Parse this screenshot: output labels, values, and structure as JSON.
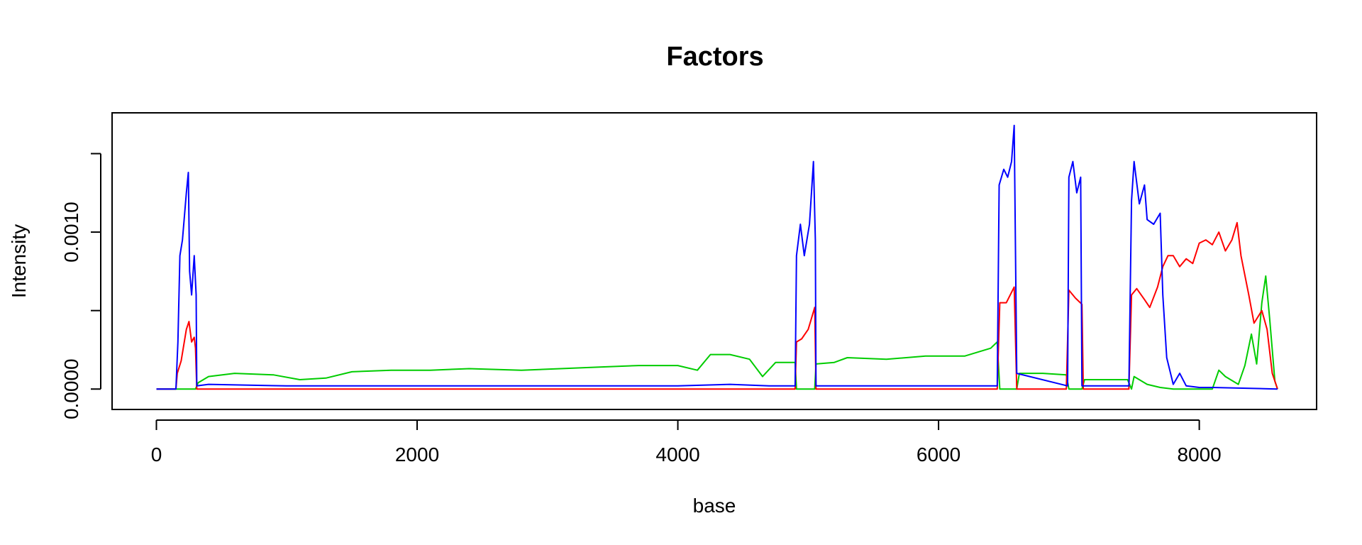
{
  "chart_data": {
    "type": "line",
    "title": "Factors",
    "xlabel": "base",
    "ylabel": "Intensity",
    "xlim": [
      -340,
      8900
    ],
    "ylim": [
      -0.00013,
      0.00176
    ],
    "x_ticks": [
      0,
      2000,
      4000,
      6000,
      8000
    ],
    "x_tick_labels": [
      "0",
      "2000",
      "4000",
      "6000",
      "8000"
    ],
    "y_ticks": [
      0,
      0.0005,
      0.001,
      0.0015
    ],
    "y_tick_labels": [
      "0.0000",
      "",
      "0.0010",
      ""
    ],
    "grid": false,
    "legend": "none",
    "series": [
      {
        "color": "#00cc00",
        "points": [
          [
            0,
            0
          ],
          [
            150,
            0
          ],
          [
            300,
            0
          ],
          [
            320,
            4e-05
          ],
          [
            400,
            8e-05
          ],
          [
            600,
            0.0001
          ],
          [
            900,
            9e-05
          ],
          [
            1100,
            6e-05
          ],
          [
            1300,
            7e-05
          ],
          [
            1500,
            0.00011
          ],
          [
            1800,
            0.00012
          ],
          [
            2100,
            0.00012
          ],
          [
            2400,
            0.00013
          ],
          [
            2800,
            0.00012
          ],
          [
            3100,
            0.00013
          ],
          [
            3400,
            0.00014
          ],
          [
            3700,
            0.00015
          ],
          [
            4000,
            0.00015
          ],
          [
            4150,
            0.00012
          ],
          [
            4250,
            0.00022
          ],
          [
            4400,
            0.00022
          ],
          [
            4550,
            0.00019
          ],
          [
            4650,
            8e-05
          ],
          [
            4750,
            0.00017
          ],
          [
            4900,
            0.00017
          ],
          [
            4910,
            0
          ],
          [
            5050,
            0
          ],
          [
            5060,
            0.00016
          ],
          [
            5200,
            0.00017
          ],
          [
            5300,
            0.0002
          ],
          [
            5600,
            0.00019
          ],
          [
            5900,
            0.00021
          ],
          [
            6200,
            0.00021
          ],
          [
            6400,
            0.00026
          ],
          [
            6450,
            0.0003
          ],
          [
            6470,
            0
          ],
          [
            6600,
            0
          ],
          [
            6620,
            0.0001
          ],
          [
            6800,
            0.0001
          ],
          [
            6980,
            9e-05
          ],
          [
            7000,
            0
          ],
          [
            7100,
            0
          ],
          [
            7120,
            6e-05
          ],
          [
            7300,
            6e-05
          ],
          [
            7450,
            6e-05
          ],
          [
            7480,
            0
          ],
          [
            7500,
            8e-05
          ],
          [
            7600,
            3e-05
          ],
          [
            7700,
            1e-05
          ],
          [
            7800,
            0
          ],
          [
            8100,
            0
          ],
          [
            8150,
            0.00012
          ],
          [
            8200,
            8e-05
          ],
          [
            8300,
            3e-05
          ],
          [
            8350,
            0.00015
          ],
          [
            8400,
            0.00035
          ],
          [
            8440,
            0.00016
          ],
          [
            8480,
            0.00055
          ],
          [
            8510,
            0.00072
          ],
          [
            8540,
            0.00045
          ],
          [
            8580,
            5e-05
          ],
          [
            8600,
            0
          ]
        ]
      },
      {
        "color": "#ff0000",
        "points": [
          [
            0,
            0
          ],
          [
            150,
            0
          ],
          [
            160,
            0.0001
          ],
          [
            190,
            0.00018
          ],
          [
            230,
            0.00038
          ],
          [
            250,
            0.00043
          ],
          [
            270,
            0.0003
          ],
          [
            290,
            0.00033
          ],
          [
            300,
            0.00026
          ],
          [
            310,
            0
          ],
          [
            4900,
            0
          ],
          [
            4910,
            0.0003
          ],
          [
            4950,
            0.00032
          ],
          [
            5000,
            0.00038
          ],
          [
            5050,
            0.00052
          ],
          [
            5060,
            0
          ],
          [
            6450,
            0
          ],
          [
            6470,
            0.00055
          ],
          [
            6520,
            0.00055
          ],
          [
            6580,
            0.00065
          ],
          [
            6600,
            0
          ],
          [
            6980,
            0
          ],
          [
            7000,
            0.00063
          ],
          [
            7050,
            0.00058
          ],
          [
            7100,
            0.00054
          ],
          [
            7110,
            0
          ],
          [
            7460,
            0
          ],
          [
            7480,
            0.0006
          ],
          [
            7520,
            0.00064
          ],
          [
            7580,
            0.00057
          ],
          [
            7620,
            0.00052
          ],
          [
            7680,
            0.00065
          ],
          [
            7720,
            0.00078
          ],
          [
            7760,
            0.00085
          ],
          [
            7800,
            0.00085
          ],
          [
            7850,
            0.00078
          ],
          [
            7900,
            0.00083
          ],
          [
            7950,
            0.0008
          ],
          [
            8000,
            0.00093
          ],
          [
            8050,
            0.00095
          ],
          [
            8100,
            0.00092
          ],
          [
            8150,
            0.001
          ],
          [
            8200,
            0.00088
          ],
          [
            8250,
            0.00095
          ],
          [
            8290,
            0.00106
          ],
          [
            8320,
            0.00085
          ],
          [
            8380,
            0.0006
          ],
          [
            8420,
            0.00042
          ],
          [
            8480,
            0.0005
          ],
          [
            8520,
            0.00038
          ],
          [
            8560,
            0.0001
          ],
          [
            8600,
            0
          ]
        ]
      },
      {
        "color": "#0000ff",
        "points": [
          [
            0,
            0
          ],
          [
            150,
            0
          ],
          [
            165,
            0.0003
          ],
          [
            180,
            0.00085
          ],
          [
            200,
            0.00095
          ],
          [
            230,
            0.00125
          ],
          [
            245,
            0.00138
          ],
          [
            255,
            0.00075
          ],
          [
            270,
            0.0006
          ],
          [
            290,
            0.00085
          ],
          [
            305,
            0.0006
          ],
          [
            310,
            2e-05
          ],
          [
            400,
            3e-05
          ],
          [
            1000,
            2e-05
          ],
          [
            2000,
            2e-05
          ],
          [
            3000,
            2e-05
          ],
          [
            4000,
            2e-05
          ],
          [
            4400,
            3e-05
          ],
          [
            4700,
            2e-05
          ],
          [
            4900,
            2e-05
          ],
          [
            4910,
            0.00085
          ],
          [
            4940,
            0.00105
          ],
          [
            4970,
            0.00085
          ],
          [
            5010,
            0.00105
          ],
          [
            5040,
            0.00145
          ],
          [
            5055,
            0.00095
          ],
          [
            5060,
            2e-05
          ],
          [
            6000,
            2e-05
          ],
          [
            6450,
            2e-05
          ],
          [
            6465,
            0.0013
          ],
          [
            6500,
            0.0014
          ],
          [
            6530,
            0.00135
          ],
          [
            6560,
            0.00145
          ],
          [
            6580,
            0.00168
          ],
          [
            6600,
            0.0001
          ],
          [
            6990,
            2e-05
          ],
          [
            7000,
            0.00135
          ],
          [
            7030,
            0.00145
          ],
          [
            7060,
            0.00125
          ],
          [
            7090,
            0.00135
          ],
          [
            7100,
            2e-05
          ],
          [
            7460,
            2e-05
          ],
          [
            7480,
            0.0012
          ],
          [
            7500,
            0.00145
          ],
          [
            7540,
            0.00118
          ],
          [
            7580,
            0.0013
          ],
          [
            7600,
            0.00108
          ],
          [
            7650,
            0.00105
          ],
          [
            7700,
            0.00112
          ],
          [
            7720,
            0.0006
          ],
          [
            7750,
            0.0002
          ],
          [
            7800,
            3e-05
          ],
          [
            7850,
            0.0001
          ],
          [
            7900,
            2e-05
          ],
          [
            8000,
            1e-05
          ],
          [
            8100,
            1e-05
          ],
          [
            8600,
            0
          ]
        ]
      }
    ]
  }
}
